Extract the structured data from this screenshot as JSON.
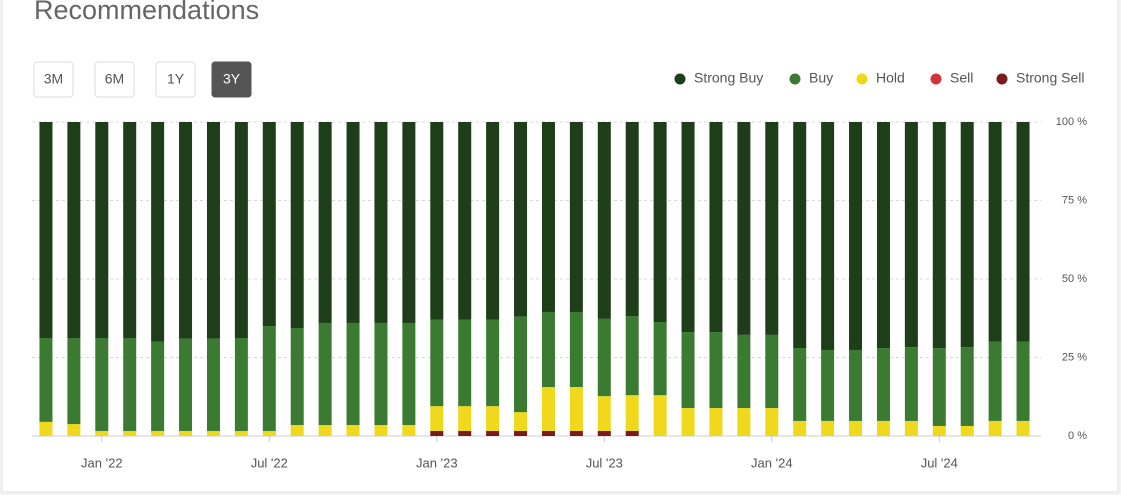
{
  "controls": {
    "buttons": [
      "3M",
      "6M",
      "1Y",
      "3Y"
    ],
    "selected": "3Y"
  },
  "chart_data": {
    "type": "stacked-bar",
    "title": "Recommendations",
    "categories": [
      null,
      null,
      "Jan '22",
      null,
      null,
      null,
      null,
      null,
      "Jul '22",
      null,
      null,
      null,
      null,
      null,
      "Jan '23",
      null,
      null,
      null,
      null,
      null,
      "Jul '23",
      null,
      null,
      null,
      null,
      null,
      "Jan '24",
      null,
      null,
      null,
      null,
      null,
      "Jul '24",
      null,
      null,
      null
    ],
    "series": [
      {
        "name": "Strong Buy",
        "color": "#1e3d19",
        "values": [
          68.8,
          68.8,
          68.8,
          68.8,
          70,
          69,
          69,
          68.8,
          65,
          65.6,
          64,
          64,
          64,
          64,
          63,
          63,
          63,
          62,
          60.5,
          60.5,
          62.7,
          61.8,
          63.7,
          66.9,
          66.9,
          67.8,
          67.8,
          72,
          72.6,
          72.6,
          72,
          71.7,
          72,
          71.7,
          70,
          70
        ]
      },
      {
        "name": "Buy",
        "color": "#3b7a31",
        "values": [
          26.7,
          27.4,
          29.6,
          29.6,
          28.4,
          29.4,
          29.4,
          29.6,
          33.4,
          30.9,
          32.5,
          32.5,
          32.5,
          32.5,
          27.5,
          27.5,
          27.5,
          30.4,
          23.9,
          23.9,
          24.6,
          25.2,
          23.3,
          24.2,
          24.2,
          23.3,
          23.3,
          23.2,
          22.6,
          22.6,
          23.2,
          23.5,
          24.8,
          25.1,
          25.2,
          25.2
        ]
      },
      {
        "name": "Hold",
        "color": "#f0d81c",
        "values": [
          4.5,
          3.8,
          1.6,
          1.6,
          1.6,
          1.6,
          1.6,
          1.6,
          1.6,
          3.5,
          3.5,
          3.5,
          3.5,
          3.5,
          7.9,
          7.9,
          7.9,
          6,
          14,
          14,
          11.1,
          11.4,
          13,
          8.9,
          8.9,
          8.9,
          8.9,
          4.8,
          4.8,
          4.8,
          4.8,
          4.8,
          3.2,
          3.2,
          4.8,
          4.8
        ]
      },
      {
        "name": "Sell",
        "color": "#d1343a",
        "values": [
          0,
          0,
          0,
          0,
          0,
          0,
          0,
          0,
          0,
          0,
          0,
          0,
          0,
          0,
          0,
          0,
          0,
          0,
          0,
          0,
          0,
          0,
          0,
          0,
          0,
          0,
          0,
          0,
          0,
          0,
          0,
          0,
          0,
          0,
          0,
          0
        ]
      },
      {
        "name": "Strong Sell",
        "color": "#7b1a1a",
        "values": [
          0,
          0,
          0,
          0,
          0,
          0,
          0,
          0,
          0,
          0,
          0,
          0,
          0,
          0,
          1.6,
          1.6,
          1.6,
          1.6,
          1.6,
          1.6,
          1.6,
          1.6,
          0,
          0,
          0,
          0,
          0,
          0,
          0,
          0,
          0,
          0,
          0,
          0,
          0,
          0
        ]
      }
    ],
    "ylim": [
      0,
      100
    ],
    "yticks": [
      {
        "value": 0,
        "label": "0 %"
      },
      {
        "value": 25,
        "label": "25 %"
      },
      {
        "value": 50,
        "label": "50 %"
      },
      {
        "value": 75,
        "label": "75 %"
      },
      {
        "value": 100,
        "label": "100 %"
      }
    ],
    "grid": true,
    "legend": "top-right"
  }
}
